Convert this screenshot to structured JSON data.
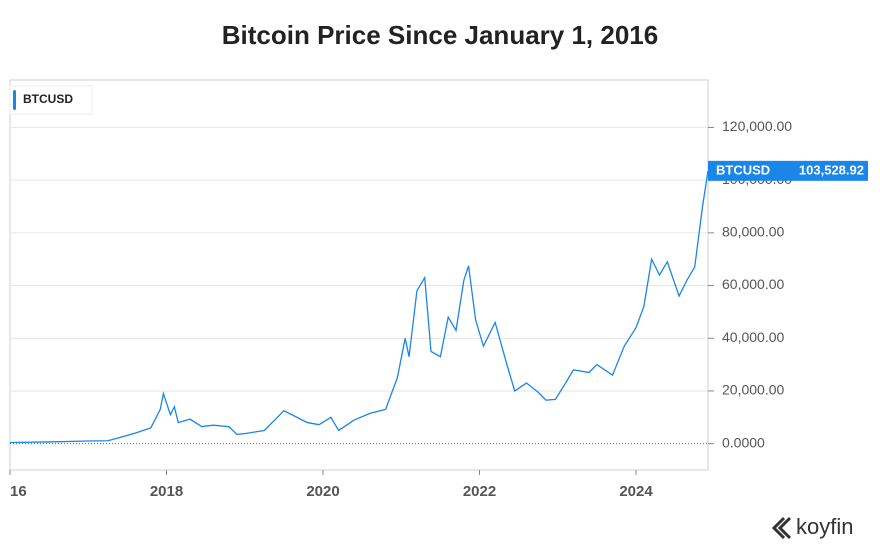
{
  "chart_data": {
    "type": "line",
    "title": "Bitcoin Price Since January 1, 2016",
    "x": [
      2016.0,
      2016.5,
      2017.0,
      2017.25,
      2017.4,
      2017.6,
      2017.8,
      2017.92,
      2017.96,
      2018.05,
      2018.1,
      2018.15,
      2018.3,
      2018.45,
      2018.6,
      2018.8,
      2018.9,
      2019.0,
      2019.25,
      2019.45,
      2019.5,
      2019.7,
      2019.8,
      2019.95,
      2020.1,
      2020.2,
      2020.4,
      2020.6,
      2020.8,
      2020.95,
      2021.05,
      2021.1,
      2021.2,
      2021.3,
      2021.38,
      2021.5,
      2021.6,
      2021.7,
      2021.8,
      2021.86,
      2021.95,
      2022.05,
      2022.2,
      2022.35,
      2022.45,
      2022.6,
      2022.75,
      2022.85,
      2022.97,
      2023.1,
      2023.2,
      2023.4,
      2023.5,
      2023.7,
      2023.85,
      2024.0,
      2024.1,
      2024.2,
      2024.3,
      2024.4,
      2024.55,
      2024.65,
      2024.75,
      2024.85,
      2024.92
    ],
    "series": [
      {
        "name": "BTCUSD",
        "color": "#1a86e8",
        "values": [
          430,
          650,
          1000,
          1100,
          2300,
          4000,
          6000,
          13000,
          19000,
          11000,
          14000,
          8000,
          9300,
          6500,
          7000,
          6400,
          3500,
          3800,
          5000,
          11000,
          12500,
          9500,
          8000,
          7200,
          10000,
          5000,
          9000,
          11500,
          13000,
          25000,
          40000,
          33000,
          58000,
          63000,
          35000,
          33000,
          48000,
          43000,
          62000,
          67500,
          47000,
          37000,
          46000,
          30000,
          20000,
          23000,
          19500,
          16500,
          16800,
          23000,
          28000,
          27000,
          30000,
          26000,
          37000,
          44000,
          52000,
          70000,
          64000,
          69000,
          56000,
          62000,
          67000,
          90000,
          103528.92
        ],
        "value_labels": [
          null,
          null,
          null,
          null,
          null,
          null,
          null,
          null,
          null,
          null,
          null,
          null,
          null,
          null,
          null,
          null,
          null,
          null,
          null,
          null,
          null,
          null,
          null,
          null,
          null,
          null,
          null,
          null,
          null,
          null,
          null,
          null,
          null,
          null,
          null,
          null,
          null,
          null,
          null,
          null,
          null,
          null,
          null,
          null,
          null,
          null,
          null,
          null,
          null,
          null,
          null,
          null,
          null,
          null,
          null,
          null,
          null,
          null,
          null,
          null,
          null,
          null,
          null,
          null,
          "103,528.92"
        ]
      }
    ],
    "xlim": [
      2016,
      2024.92
    ],
    "xticks": [
      {
        "value": 2016,
        "label": "16"
      },
      2018,
      2020,
      2022,
      2024
    ],
    "ylim": [
      -10000,
      138000
    ],
    "yticks": [
      {
        "value": 0,
        "label": "0.0000"
      },
      {
        "value": 20000,
        "label": "20,000.00"
      },
      {
        "value": 40000,
        "label": "40,000.00"
      },
      {
        "value": 60000,
        "label": "60,000.00"
      },
      {
        "value": 80000,
        "label": "80,000.00"
      },
      {
        "value": 100000,
        "label": "100,000.00"
      },
      {
        "value": 120000,
        "label": "120,000.00"
      }
    ],
    "grid": true,
    "source": "koyfin"
  }
}
